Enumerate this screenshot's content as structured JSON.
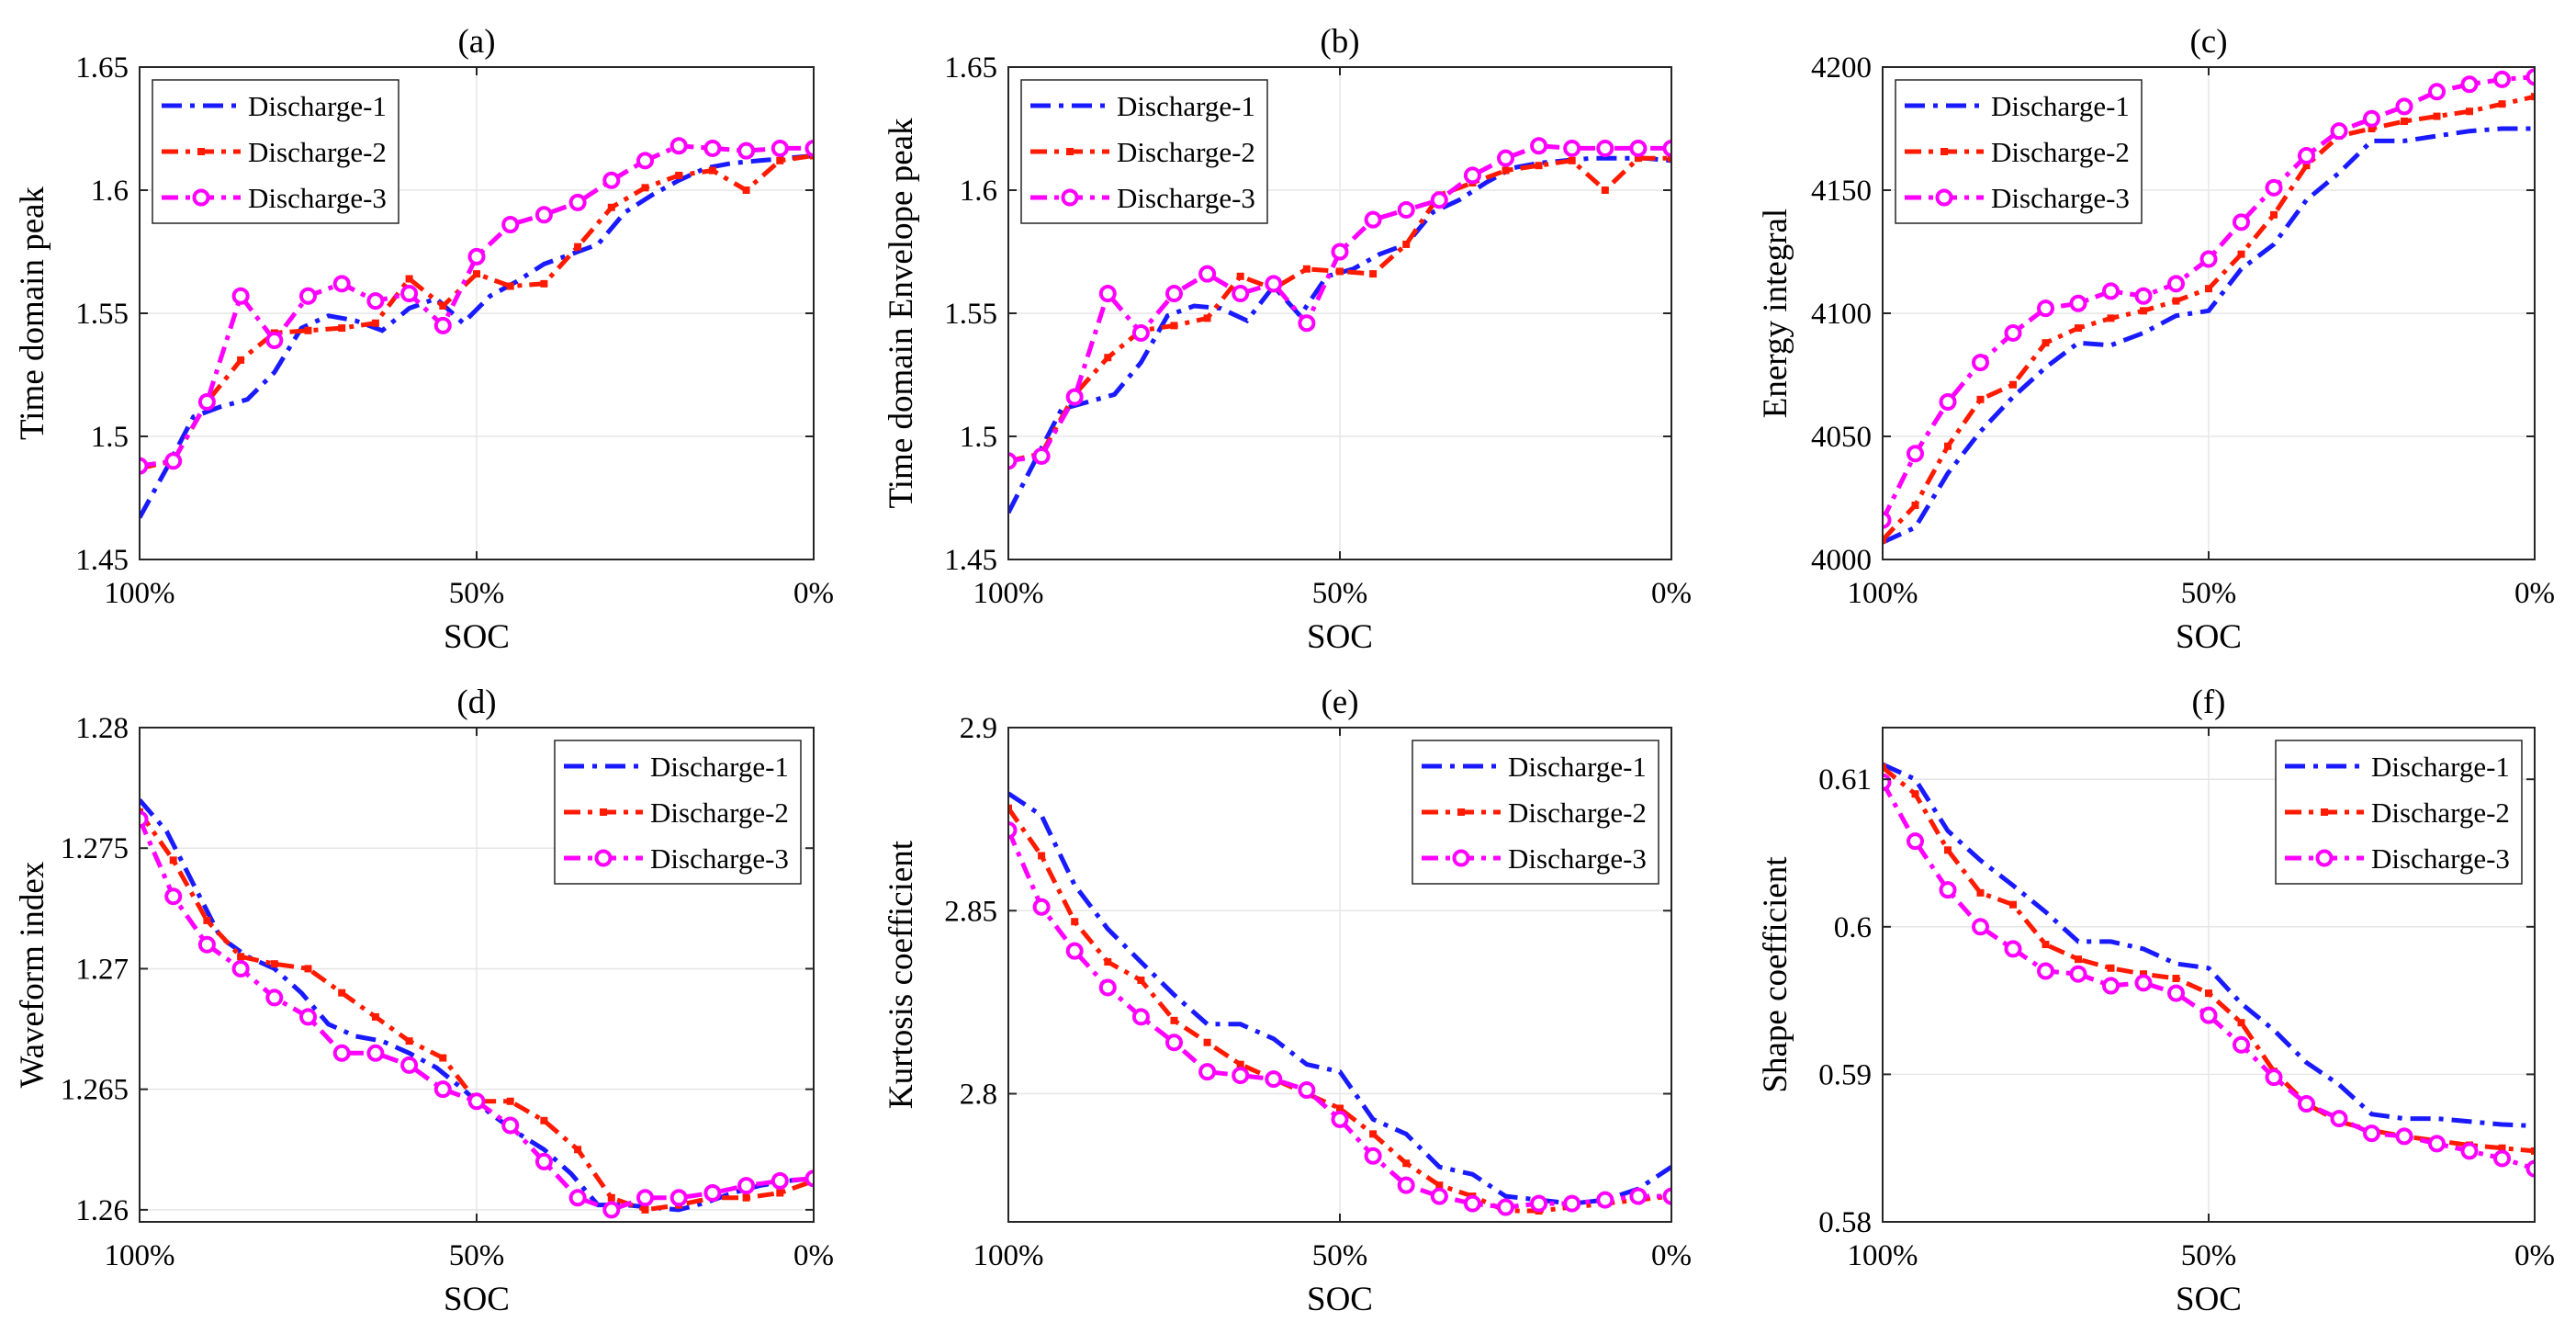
{
  "colors": {
    "series": [
      "#1a1aff",
      "#ff1a00",
      "#ff00ff"
    ]
  },
  "chart_data": [
    {
      "type": "line",
      "panel": "(a)",
      "title": "(a)",
      "xlabel": "SOC",
      "ylabel": "Time domain peak",
      "ylim": [
        1.45,
        1.65
      ],
      "yticks": [
        1.45,
        1.5,
        1.55,
        1.6,
        1.65
      ],
      "ytick_labels": [
        "1.45",
        "1.5",
        "1.55",
        "1.6",
        "1.65"
      ],
      "xlim": [
        100,
        0
      ],
      "xticks": [
        100,
        50,
        0
      ],
      "xtick_labels": [
        "100%",
        "50%",
        "0%"
      ],
      "legend": "top-left",
      "grid": true,
      "series": [
        {
          "name": "Discharge-1",
          "x": [
            100,
            96,
            92,
            88,
            84,
            80,
            76,
            72,
            68,
            64,
            60,
            56,
            52,
            48,
            44,
            40,
            36,
            32,
            28,
            24,
            20,
            16,
            12,
            8,
            4,
            0
          ],
          "y": [
            1.467,
            1.487,
            1.508,
            1.512,
            1.515,
            1.526,
            1.544,
            1.549,
            1.547,
            1.543,
            1.552,
            1.556,
            1.546,
            1.557,
            1.563,
            1.57,
            1.574,
            1.578,
            1.591,
            1.598,
            1.604,
            1.609,
            1.611,
            1.612,
            1.613,
            1.614
          ]
        },
        {
          "name": "Discharge-2",
          "x": [
            100,
            95,
            90,
            85,
            80,
            75,
            70,
            65,
            60,
            55,
            50,
            45,
            40,
            35,
            30,
            25,
            20,
            15,
            10,
            5,
            0
          ],
          "y": [
            1.487,
            1.49,
            1.514,
            1.531,
            1.542,
            1.543,
            1.544,
            1.546,
            1.564,
            1.553,
            1.566,
            1.561,
            1.562,
            1.577,
            1.593,
            1.601,
            1.606,
            1.608,
            1.6,
            1.612,
            1.614
          ]
        },
        {
          "name": "Discharge-3",
          "x": [
            100,
            95,
            90,
            85,
            80,
            75,
            70,
            65,
            60,
            55,
            50,
            45,
            40,
            35,
            30,
            25,
            20,
            15,
            10,
            5,
            0
          ],
          "y": [
            1.488,
            1.49,
            1.514,
            1.557,
            1.539,
            1.557,
            1.562,
            1.555,
            1.558,
            1.545,
            1.573,
            1.586,
            1.59,
            1.595,
            1.604,
            1.612,
            1.618,
            1.617,
            1.616,
            1.617,
            1.617
          ]
        }
      ]
    },
    {
      "type": "line",
      "panel": "(b)",
      "title": "(b)",
      "xlabel": "SOC",
      "ylabel": "Time domain Envelope peak",
      "ylim": [
        1.45,
        1.65
      ],
      "yticks": [
        1.45,
        1.5,
        1.55,
        1.6,
        1.65
      ],
      "ytick_labels": [
        "1.45",
        "1.5",
        "1.55",
        "1.6",
        "1.65"
      ],
      "xlim": [
        100,
        0
      ],
      "xticks": [
        100,
        50,
        0
      ],
      "xtick_labels": [
        "100%",
        "50%",
        "0%"
      ],
      "legend": "top-left",
      "grid": true,
      "series": [
        {
          "name": "Discharge-1",
          "x": [
            100,
            96,
            92,
            88,
            84,
            80,
            76,
            72,
            68,
            64,
            60,
            56,
            52,
            48,
            44,
            40,
            36,
            32,
            28,
            24,
            20,
            16,
            12,
            8,
            4,
            0
          ],
          "y": [
            1.469,
            1.49,
            1.511,
            1.514,
            1.517,
            1.53,
            1.549,
            1.553,
            1.552,
            1.547,
            1.561,
            1.549,
            1.565,
            1.568,
            1.574,
            1.578,
            1.591,
            1.596,
            1.603,
            1.609,
            1.611,
            1.612,
            1.613,
            1.613,
            1.613,
            1.612
          ]
        },
        {
          "name": "Discharge-2",
          "x": [
            100,
            95,
            90,
            85,
            80,
            75,
            70,
            65,
            60,
            55,
            50,
            45,
            40,
            35,
            30,
            25,
            20,
            15,
            10,
            5,
            0
          ],
          "y": [
            1.49,
            1.493,
            1.517,
            1.532,
            1.543,
            1.545,
            1.548,
            1.565,
            1.56,
            1.568,
            1.567,
            1.566,
            1.578,
            1.598,
            1.603,
            1.608,
            1.61,
            1.612,
            1.6,
            1.613,
            1.613
          ]
        },
        {
          "name": "Discharge-3",
          "x": [
            100,
            95,
            90,
            85,
            80,
            75,
            70,
            65,
            60,
            55,
            50,
            45,
            40,
            35,
            30,
            25,
            20,
            15,
            10,
            5,
            0
          ],
          "y": [
            1.49,
            1.492,
            1.516,
            1.558,
            1.542,
            1.558,
            1.566,
            1.558,
            1.562,
            1.546,
            1.575,
            1.588,
            1.592,
            1.596,
            1.606,
            1.613,
            1.618,
            1.617,
            1.617,
            1.617,
            1.617
          ]
        }
      ]
    },
    {
      "type": "line",
      "panel": "(c)",
      "title": "(c)",
      "xlabel": "SOC",
      "ylabel": "Energy integral",
      "ylim": [
        4000,
        4200
      ],
      "yticks": [
        4000,
        4050,
        4100,
        4150,
        4200
      ],
      "ytick_labels": [
        "4000",
        "4050",
        "4100",
        "4150",
        "4200"
      ],
      "xlim": [
        100,
        0
      ],
      "xticks": [
        100,
        50,
        0
      ],
      "xtick_labels": [
        "100%",
        "50%",
        "0%"
      ],
      "legend": "top-left",
      "grid": true,
      "series": [
        {
          "name": "Discharge-1",
          "x": [
            100,
            95,
            90,
            85,
            80,
            75,
            70,
            65,
            60,
            55,
            50,
            45,
            40,
            35,
            30,
            25,
            20,
            15,
            10,
            5,
            0
          ],
          "y": [
            4007,
            4013,
            4035,
            4052,
            4066,
            4078,
            4088,
            4087,
            4092,
            4099,
            4101,
            4118,
            4128,
            4146,
            4157,
            4170,
            4170,
            4172,
            4174,
            4175,
            4175
          ]
        },
        {
          "name": "Discharge-2",
          "x": [
            100,
            95,
            90,
            85,
            80,
            75,
            70,
            65,
            60,
            55,
            50,
            45,
            40,
            35,
            30,
            25,
            20,
            15,
            10,
            5,
            0
          ],
          "y": [
            4008,
            4022,
            4046,
            4065,
            4071,
            4088,
            4094,
            4098,
            4101,
            4105,
            4110,
            4124,
            4140,
            4160,
            4172,
            4175,
            4178,
            4180,
            4182,
            4185,
            4188
          ]
        },
        {
          "name": "Discharge-3",
          "x": [
            100,
            95,
            90,
            85,
            80,
            75,
            70,
            65,
            60,
            55,
            50,
            45,
            40,
            35,
            30,
            25,
            20,
            15,
            10,
            5,
            0
          ],
          "y": [
            4016,
            4043,
            4064,
            4080,
            4092,
            4102,
            4104,
            4109,
            4107,
            4112,
            4122,
            4137,
            4151,
            4164,
            4174,
            4179,
            4184,
            4190,
            4193,
            4195,
            4196
          ]
        }
      ]
    },
    {
      "type": "line",
      "panel": "(d)",
      "title": "(d)",
      "xlabel": "SOC",
      "ylabel": "Waveform index",
      "ylim": [
        1.2595,
        1.28
      ],
      "yticks": [
        1.26,
        1.265,
        1.27,
        1.275,
        1.28
      ],
      "ytick_labels": [
        "1.26",
        "1.265",
        "1.27",
        "1.275",
        "1.28"
      ],
      "xlim": [
        100,
        0
      ],
      "xticks": [
        100,
        50,
        0
      ],
      "xtick_labels": [
        "100%",
        "50%",
        "0%"
      ],
      "legend": "top-right",
      "grid": true,
      "series": [
        {
          "name": "Discharge-1",
          "x": [
            100,
            96,
            92,
            88,
            84,
            80,
            76,
            72,
            68,
            64,
            60,
            56,
            52,
            48,
            44,
            40,
            36,
            32,
            28,
            24,
            20,
            16,
            12,
            8,
            4,
            0
          ],
          "y": [
            1.277,
            1.2757,
            1.2735,
            1.2713,
            1.2705,
            1.27,
            1.269,
            1.2677,
            1.2672,
            1.267,
            1.2665,
            1.2659,
            1.265,
            1.264,
            1.2632,
            1.2625,
            1.2615,
            1.2602,
            1.2602,
            1.2601,
            1.26,
            1.2603,
            1.2607,
            1.261,
            1.2612,
            1.2613
          ]
        },
        {
          "name": "Discharge-2",
          "x": [
            100,
            95,
            90,
            85,
            80,
            75,
            70,
            65,
            60,
            55,
            50,
            45,
            40,
            35,
            30,
            25,
            20,
            15,
            10,
            5,
            0
          ],
          "y": [
            1.2765,
            1.2745,
            1.272,
            1.2705,
            1.2702,
            1.27,
            1.269,
            1.268,
            1.267,
            1.2663,
            1.2645,
            1.2645,
            1.2637,
            1.2625,
            1.2605,
            1.26,
            1.2602,
            1.2605,
            1.2605,
            1.2607,
            1.2612
          ]
        },
        {
          "name": "Discharge-3",
          "x": [
            100,
            95,
            90,
            85,
            80,
            75,
            70,
            65,
            60,
            55,
            50,
            45,
            40,
            35,
            30,
            25,
            20,
            15,
            10,
            5,
            0
          ],
          "y": [
            1.2762,
            1.273,
            1.271,
            1.27,
            1.2688,
            1.268,
            1.2665,
            1.2665,
            1.266,
            1.265,
            1.2645,
            1.2635,
            1.262,
            1.2605,
            1.26,
            1.2605,
            1.2605,
            1.2607,
            1.261,
            1.2612,
            1.2613
          ]
        }
      ]
    },
    {
      "type": "line",
      "panel": "(e)",
      "title": "(e)",
      "xlabel": "SOC",
      "ylabel": "Kurtosis coefficient",
      "ylim": [
        2.765,
        2.9
      ],
      "yticks": [
        2.8,
        2.85,
        2.9
      ],
      "ytick_labels": [
        "2.8",
        "2.85",
        "2.9"
      ],
      "xlim": [
        100,
        0
      ],
      "xticks": [
        100,
        50,
        0
      ],
      "xtick_labels": [
        "100%",
        "50%",
        "0%"
      ],
      "legend": "top-right",
      "grid": true,
      "series": [
        {
          "name": "Discharge-1",
          "x": [
            100,
            95,
            90,
            85,
            80,
            75,
            70,
            65,
            60,
            55,
            50,
            45,
            40,
            35,
            30,
            25,
            20,
            15,
            10,
            5,
            0
          ],
          "y": [
            2.882,
            2.876,
            2.857,
            2.845,
            2.836,
            2.827,
            2.819,
            2.819,
            2.815,
            2.808,
            2.806,
            2.793,
            2.789,
            2.78,
            2.778,
            2.772,
            2.771,
            2.77,
            2.771,
            2.774,
            2.78
          ]
        },
        {
          "name": "Discharge-2",
          "x": [
            100,
            95,
            90,
            85,
            80,
            75,
            70,
            65,
            60,
            55,
            50,
            45,
            40,
            35,
            30,
            25,
            20,
            15,
            10,
            5,
            0
          ],
          "y": [
            2.878,
            2.865,
            2.847,
            2.836,
            2.831,
            2.82,
            2.814,
            2.808,
            2.804,
            2.8,
            2.796,
            2.789,
            2.781,
            2.775,
            2.772,
            2.768,
            2.768,
            2.769,
            2.77,
            2.771,
            2.772
          ]
        },
        {
          "name": "Discharge-3",
          "x": [
            100,
            95,
            90,
            85,
            80,
            75,
            70,
            65,
            60,
            55,
            50,
            45,
            40,
            35,
            30,
            25,
            20,
            15,
            10,
            5,
            0
          ],
          "y": [
            2.872,
            2.851,
            2.839,
            2.829,
            2.821,
            2.814,
            2.806,
            2.805,
            2.804,
            2.801,
            2.793,
            2.783,
            2.775,
            2.772,
            2.77,
            2.769,
            2.77,
            2.77,
            2.771,
            2.772,
            2.772
          ]
        }
      ]
    },
    {
      "type": "line",
      "panel": "(f)",
      "title": "(f)",
      "xlabel": "SOC",
      "ylabel": "Shape coefficient",
      "ylim": [
        0.58,
        0.6135
      ],
      "yticks": [
        0.58,
        0.59,
        0.6,
        0.61
      ],
      "ytick_labels": [
        "0.58",
        "0.59",
        "0.6",
        "0.61"
      ],
      "xlim": [
        100,
        0
      ],
      "xticks": [
        100,
        50,
        0
      ],
      "xtick_labels": [
        "100%",
        "50%",
        "0%"
      ],
      "legend": "top-right",
      "grid": true,
      "series": [
        {
          "name": "Discharge-1",
          "x": [
            100,
            95,
            90,
            85,
            80,
            75,
            70,
            65,
            60,
            55,
            50,
            45,
            40,
            35,
            30,
            25,
            20,
            15,
            10,
            5,
            0
          ],
          "y": [
            0.611,
            0.61,
            0.6065,
            0.6045,
            0.6028,
            0.601,
            0.599,
            0.599,
            0.5985,
            0.5975,
            0.5972,
            0.5948,
            0.593,
            0.5908,
            0.5893,
            0.5873,
            0.587,
            0.587,
            0.5868,
            0.5866,
            0.5865
          ]
        },
        {
          "name": "Discharge-2",
          "x": [
            100,
            95,
            90,
            85,
            80,
            75,
            70,
            65,
            60,
            55,
            50,
            45,
            40,
            35,
            30,
            25,
            20,
            15,
            10,
            5,
            0
          ],
          "y": [
            0.6108,
            0.609,
            0.6052,
            0.6023,
            0.6015,
            0.5988,
            0.5978,
            0.5972,
            0.5968,
            0.5965,
            0.5955,
            0.5935,
            0.5902,
            0.588,
            0.5868,
            0.5862,
            0.5858,
            0.5855,
            0.5852,
            0.585,
            0.5848
          ]
        },
        {
          "name": "Discharge-3",
          "x": [
            100,
            95,
            90,
            85,
            80,
            75,
            70,
            65,
            60,
            55,
            50,
            45,
            40,
            35,
            30,
            25,
            20,
            15,
            10,
            5,
            0
          ],
          "y": [
            0.6098,
            0.6058,
            0.6025,
            0.6,
            0.5985,
            0.597,
            0.5968,
            0.596,
            0.5962,
            0.5955,
            0.594,
            0.592,
            0.5898,
            0.588,
            0.587,
            0.586,
            0.5858,
            0.5853,
            0.5848,
            0.5843,
            0.5836
          ]
        }
      ]
    }
  ]
}
